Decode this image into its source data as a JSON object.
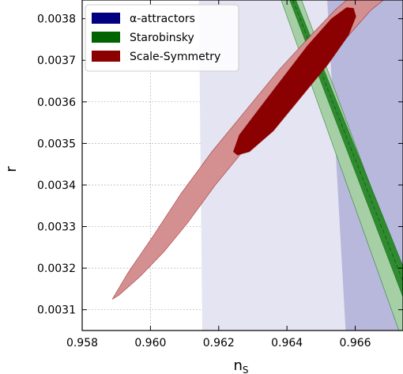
{
  "chart_data": {
    "type": "contour",
    "xlabel": "n",
    "xlabel_subscript": "S",
    "ylabel": "r",
    "xlim": [
      0.958,
      0.9674
    ],
    "ylim": [
      0.00305,
      0.003845
    ],
    "x_ticks": [
      0.958,
      0.96,
      0.962,
      0.964,
      0.966
    ],
    "x_tick_labels": [
      "0.958",
      "0.960",
      "0.962",
      "0.964",
      "0.966"
    ],
    "y_ticks": [
      0.0031,
      0.0032,
      0.0033,
      0.0034,
      0.0035,
      0.0036,
      0.0037,
      0.0038
    ],
    "y_tick_labels": [
      "0.0031",
      "0.0032",
      "0.0033",
      "0.0034",
      "0.0035",
      "0.0036",
      "0.0037",
      "0.0038"
    ],
    "grid": true,
    "legend_position": "top-left",
    "series": [
      {
        "name": "α-attractors",
        "color": "#000080",
        "regions": [
          {
            "level": "2sigma",
            "fill": "#e4e4f2",
            "points": [
              [
                0.96142,
                0.003845
              ],
              [
                0.9674,
                0.003845
              ],
              [
                0.9674,
                0.00305
              ],
              [
                0.96152,
                0.00305
              ]
            ]
          },
          {
            "level": "1sigma",
            "fill": "#b8b8dc",
            "points": [
              [
                0.96518,
                0.003845
              ],
              [
                0.9674,
                0.003845
              ],
              [
                0.9674,
                0.00305
              ],
              [
                0.96572,
                0.00305
              ]
            ]
          }
        ]
      },
      {
        "name": "Starobinsky",
        "color": "#006400",
        "regions": [
          {
            "level": "2sigma",
            "fill": "#a6cfa6",
            "points": [
              [
                0.96383,
                0.003845
              ],
              [
                0.96443,
                0.003845
              ],
              [
                0.96752,
                0.00316
              ],
              [
                0.96752,
                0.00305
              ],
              [
                0.96728,
                0.00305
              ]
            ]
          },
          {
            "level": "1sigma",
            "fill": "#2f8b2f",
            "points": [
              [
                0.96408,
                0.003845
              ],
              [
                0.96426,
                0.003845
              ],
              [
                0.9674,
                0.003205
              ],
              [
                0.9674,
                0.00313
              ]
            ]
          }
        ],
        "center_line": [
          [
            0.96417,
            0.003845
          ],
          [
            0.9674,
            0.003168
          ]
        ]
      },
      {
        "name": "Scale-Symmetry",
        "color": "#8b0000",
        "regions": [
          {
            "level": "2sigma",
            "fill": "#d49090",
            "points": [
              [
                0.95888,
                0.003125
              ],
              [
                0.95935,
                0.00319
              ],
              [
                0.9601,
                0.00328
              ],
              [
                0.9609,
                0.00338
              ],
              [
                0.9618,
                0.00348
              ],
              [
                0.9628,
                0.00358
              ],
              [
                0.9638,
                0.00368
              ],
              [
                0.9647,
                0.00376
              ],
              [
                0.9654,
                0.00382
              ],
              [
                0.96575,
                0.003845
              ],
              [
                0.96683,
                0.003845
              ],
              [
                0.96645,
                0.00382
              ],
              [
                0.9657,
                0.00375
              ],
              [
                0.9648,
                0.00367
              ],
              [
                0.9638,
                0.00358
              ],
              [
                0.9628,
                0.00349
              ],
              [
                0.9619,
                0.0034
              ],
              [
                0.9611,
                0.00331
              ],
              [
                0.9604,
                0.00324
              ],
              [
                0.9597,
                0.00318
              ],
              [
                0.95908,
                0.003135
              ]
            ]
          },
          {
            "level": "1sigma",
            "fill": "#8b0000",
            "points": [
              [
                0.96243,
                0.00348
              ],
              [
                0.9626,
                0.00352
              ],
              [
                0.9632,
                0.003585
              ],
              [
                0.9639,
                0.00366
              ],
              [
                0.9646,
                0.003735
              ],
              [
                0.9653,
                0.0038
              ],
              [
                0.96575,
                0.003827
              ],
              [
                0.96595,
                0.003825
              ],
              [
                0.96602,
                0.003805
              ],
              [
                0.9658,
                0.00376
              ],
              [
                0.9652,
                0.00369
              ],
              [
                0.9644,
                0.00361
              ],
              [
                0.9636,
                0.00353
              ],
              [
                0.9629,
                0.00348
              ],
              [
                0.96255,
                0.003472
              ]
            ]
          }
        ]
      }
    ]
  }
}
